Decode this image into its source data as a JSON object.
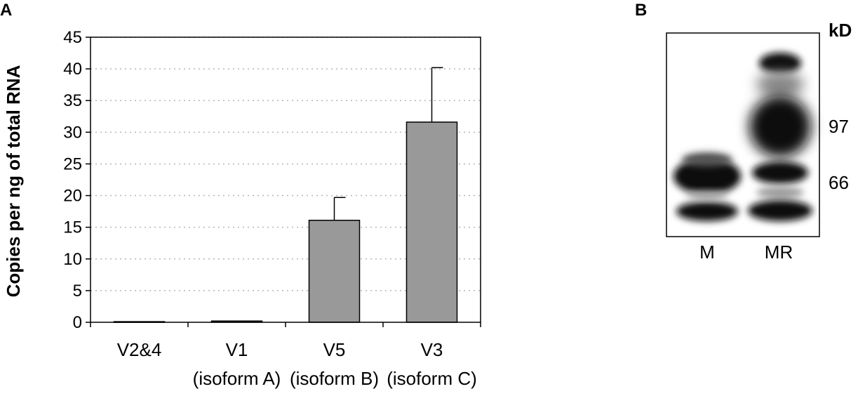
{
  "panel_a": {
    "label": "A",
    "chart_data": {
      "type": "bar",
      "categories": [
        "V2&4",
        "V1",
        "V5",
        "V3"
      ],
      "category_sublabels": [
        "",
        "(isoform A)",
        "(isoform B)",
        "(isoform C)"
      ],
      "values": [
        0.1,
        0.2,
        16.1,
        31.6
      ],
      "errors": [
        0,
        0,
        3.6,
        8.6
      ],
      "ylabel": "Copies per ng of total RNA",
      "xlabel": "",
      "ylim": [
        0,
        45
      ],
      "yticks": [
        "0",
        "5",
        "10",
        "15",
        "20",
        "25",
        "30",
        "35",
        "40",
        "45"
      ],
      "grid": "dotted horizontal",
      "bar_color": "#999999"
    }
  },
  "panel_b": {
    "label": "B",
    "unit": "kD",
    "lanes": [
      "M",
      "MR"
    ],
    "markers": [
      "97",
      "66"
    ]
  }
}
